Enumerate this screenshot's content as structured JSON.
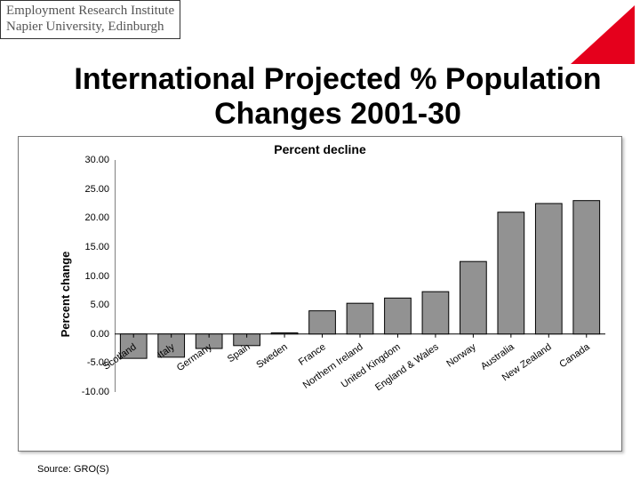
{
  "header": {
    "line1": "Employment Research Institute",
    "line2": "Napier University, Edinburgh"
  },
  "logo": {
    "color": "#e5001c"
  },
  "title": "International Projected % Population Changes 2001-30",
  "source": "Source: GRO(S)",
  "chart": {
    "type": "bar",
    "title": "Percent decline",
    "ylabel": "Percent change",
    "ylim": [
      -10,
      30
    ],
    "ytick_step": 5,
    "ytick_format": "0.00",
    "background_color": "#ffffff",
    "axis_color": "#000000",
    "tickmark_color": "#000000",
    "bar_fill": "#929292",
    "bar_border": "#000000",
    "bar_width": 0.7,
    "title_fontsize": 14,
    "label_fontsize": 13,
    "tick_fontsize": 11,
    "categories": [
      "Scotland",
      "Italy",
      "Germany",
      "Spain",
      "Sweden",
      "France",
      "Northern Ireland",
      "United Kingdom",
      "England & Wales",
      "Norway",
      "Australia",
      "New Zealand",
      "Canada"
    ],
    "values": [
      -4.2,
      -4.0,
      -2.5,
      -2.0,
      0.2,
      4.0,
      5.3,
      6.2,
      7.3,
      12.5,
      21.0,
      22.5,
      23.0
    ]
  }
}
